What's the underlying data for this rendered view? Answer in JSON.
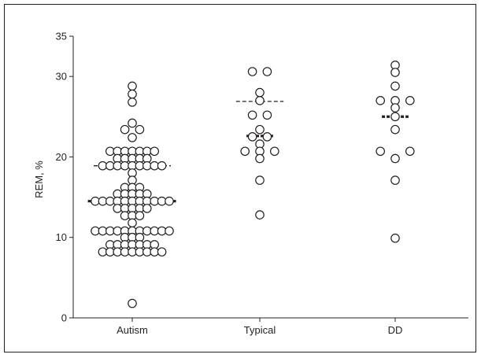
{
  "chart_data": {
    "type": "scatter",
    "title": "",
    "xlabel": "",
    "ylabel": "REM, %",
    "ylim": [
      0,
      35
    ],
    "yticks": [
      0,
      10,
      20,
      30,
      35
    ],
    "categories": [
      "Autism",
      "Typical",
      "DD"
    ],
    "grid": false,
    "legend": "none",
    "marker": "open-circle",
    "series": [
      {
        "category": "Autism",
        "points": [
          {
            "offset": 0,
            "y": 28.8
          },
          {
            "offset": 0,
            "y": 27.8
          },
          {
            "offset": 0,
            "y": 26.8
          },
          {
            "offset": 0,
            "y": 24.2
          },
          {
            "offset": -1,
            "y": 23.4
          },
          {
            "offset": 1,
            "y": 23.4
          },
          {
            "offset": 0,
            "y": 22.4
          },
          {
            "offset": -3,
            "y": 20.7
          },
          {
            "offset": -2,
            "y": 20.7
          },
          {
            "offset": -1,
            "y": 20.7
          },
          {
            "offset": 0,
            "y": 20.7
          },
          {
            "offset": 1,
            "y": 20.7
          },
          {
            "offset": 2,
            "y": 20.7
          },
          {
            "offset": 3,
            "y": 20.7
          },
          {
            "offset": -2,
            "y": 19.8
          },
          {
            "offset": -1,
            "y": 19.8
          },
          {
            "offset": 0,
            "y": 19.8
          },
          {
            "offset": 1,
            "y": 19.8
          },
          {
            "offset": 2,
            "y": 19.8
          },
          {
            "offset": -4,
            "y": 18.9
          },
          {
            "offset": -3,
            "y": 18.9
          },
          {
            "offset": -2,
            "y": 18.9
          },
          {
            "offset": -1,
            "y": 18.9
          },
          {
            "offset": 0,
            "y": 18.9
          },
          {
            "offset": 1,
            "y": 18.9
          },
          {
            "offset": 2,
            "y": 18.9
          },
          {
            "offset": 3,
            "y": 18.9
          },
          {
            "offset": 4,
            "y": 18.9
          },
          {
            "offset": 0,
            "y": 18.0
          },
          {
            "offset": 0,
            "y": 17.1
          },
          {
            "offset": -1,
            "y": 16.2
          },
          {
            "offset": 0,
            "y": 16.2
          },
          {
            "offset": 1,
            "y": 16.2
          },
          {
            "offset": -2,
            "y": 15.4
          },
          {
            "offset": -1,
            "y": 15.4
          },
          {
            "offset": 0,
            "y": 15.4
          },
          {
            "offset": 1,
            "y": 15.4
          },
          {
            "offset": 2,
            "y": 15.4
          },
          {
            "offset": -5,
            "y": 14.5
          },
          {
            "offset": -4,
            "y": 14.5
          },
          {
            "offset": -3,
            "y": 14.5
          },
          {
            "offset": -2,
            "y": 14.5
          },
          {
            "offset": -1,
            "y": 14.5
          },
          {
            "offset": 0,
            "y": 14.5
          },
          {
            "offset": 1,
            "y": 14.5
          },
          {
            "offset": 2,
            "y": 14.5
          },
          {
            "offset": 3,
            "y": 14.5
          },
          {
            "offset": 4,
            "y": 14.5
          },
          {
            "offset": 5,
            "y": 14.5
          },
          {
            "offset": -2,
            "y": 13.6
          },
          {
            "offset": -1,
            "y": 13.6
          },
          {
            "offset": 0,
            "y": 13.6
          },
          {
            "offset": 1,
            "y": 13.6
          },
          {
            "offset": 2,
            "y": 13.6
          },
          {
            "offset": -1,
            "y": 12.7
          },
          {
            "offset": 0,
            "y": 12.7
          },
          {
            "offset": 1,
            "y": 12.7
          },
          {
            "offset": 0,
            "y": 11.8
          },
          {
            "offset": -5,
            "y": 10.8
          },
          {
            "offset": -4,
            "y": 10.8
          },
          {
            "offset": -3,
            "y": 10.8
          },
          {
            "offset": -2,
            "y": 10.8
          },
          {
            "offset": -1,
            "y": 10.8
          },
          {
            "offset": 0,
            "y": 10.8
          },
          {
            "offset": 1,
            "y": 10.8
          },
          {
            "offset": 2,
            "y": 10.8
          },
          {
            "offset": 3,
            "y": 10.8
          },
          {
            "offset": 4,
            "y": 10.8
          },
          {
            "offset": 5,
            "y": 10.8
          },
          {
            "offset": -1,
            "y": 10.0
          },
          {
            "offset": 0,
            "y": 10.0
          },
          {
            "offset": 1,
            "y": 10.0
          },
          {
            "offset": -3,
            "y": 9.1
          },
          {
            "offset": -2,
            "y": 9.1
          },
          {
            "offset": -1,
            "y": 9.1
          },
          {
            "offset": 0,
            "y": 9.1
          },
          {
            "offset": 1,
            "y": 9.1
          },
          {
            "offset": 2,
            "y": 9.1
          },
          {
            "offset": 3,
            "y": 9.1
          },
          {
            "offset": -4,
            "y": 8.2
          },
          {
            "offset": -3,
            "y": 8.2
          },
          {
            "offset": -2,
            "y": 8.2
          },
          {
            "offset": -1,
            "y": 8.2
          },
          {
            "offset": 0,
            "y": 8.2
          },
          {
            "offset": 1,
            "y": 8.2
          },
          {
            "offset": 2,
            "y": 8.2
          },
          {
            "offset": 3,
            "y": 8.2
          },
          {
            "offset": 4,
            "y": 8.2
          },
          {
            "offset": 0,
            "y": 1.8
          }
        ],
        "median": 14.5,
        "dashed_line": 18.9
      },
      {
        "category": "Typical",
        "points": [
          {
            "offset": -1,
            "y": 30.6
          },
          {
            "offset": 1,
            "y": 30.6
          },
          {
            "offset": 0,
            "y": 28.0
          },
          {
            "offset": 0,
            "y": 27.0
          },
          {
            "offset": -1,
            "y": 25.2
          },
          {
            "offset": 1,
            "y": 25.2
          },
          {
            "offset": 0,
            "y": 23.4
          },
          {
            "offset": -1,
            "y": 22.5
          },
          {
            "offset": 1,
            "y": 22.5
          },
          {
            "offset": 0,
            "y": 21.6
          },
          {
            "offset": -2,
            "y": 20.7
          },
          {
            "offset": 0,
            "y": 20.7
          },
          {
            "offset": 2,
            "y": 20.7
          },
          {
            "offset": 0,
            "y": 19.8
          },
          {
            "offset": 0,
            "y": 17.1
          },
          {
            "offset": 0,
            "y": 12.8
          }
        ],
        "median": 22.6,
        "dashed_line": 26.9
      },
      {
        "category": "DD",
        "points": [
          {
            "offset": 0,
            "y": 31.4
          },
          {
            "offset": 0,
            "y": 30.5
          },
          {
            "offset": 0,
            "y": 28.8
          },
          {
            "offset": -2,
            "y": 27.0
          },
          {
            "offset": 0,
            "y": 27.0
          },
          {
            "offset": 2,
            "y": 27.0
          },
          {
            "offset": 0,
            "y": 26.1
          },
          {
            "offset": 0,
            "y": 25.0
          },
          {
            "offset": 0,
            "y": 23.4
          },
          {
            "offset": -2,
            "y": 20.7
          },
          {
            "offset": 2,
            "y": 20.7
          },
          {
            "offset": 0,
            "y": 19.8
          },
          {
            "offset": 0,
            "y": 17.1
          },
          {
            "offset": 0,
            "y": 9.9
          }
        ],
        "median": 25.0,
        "dashed_line": null
      }
    ]
  }
}
